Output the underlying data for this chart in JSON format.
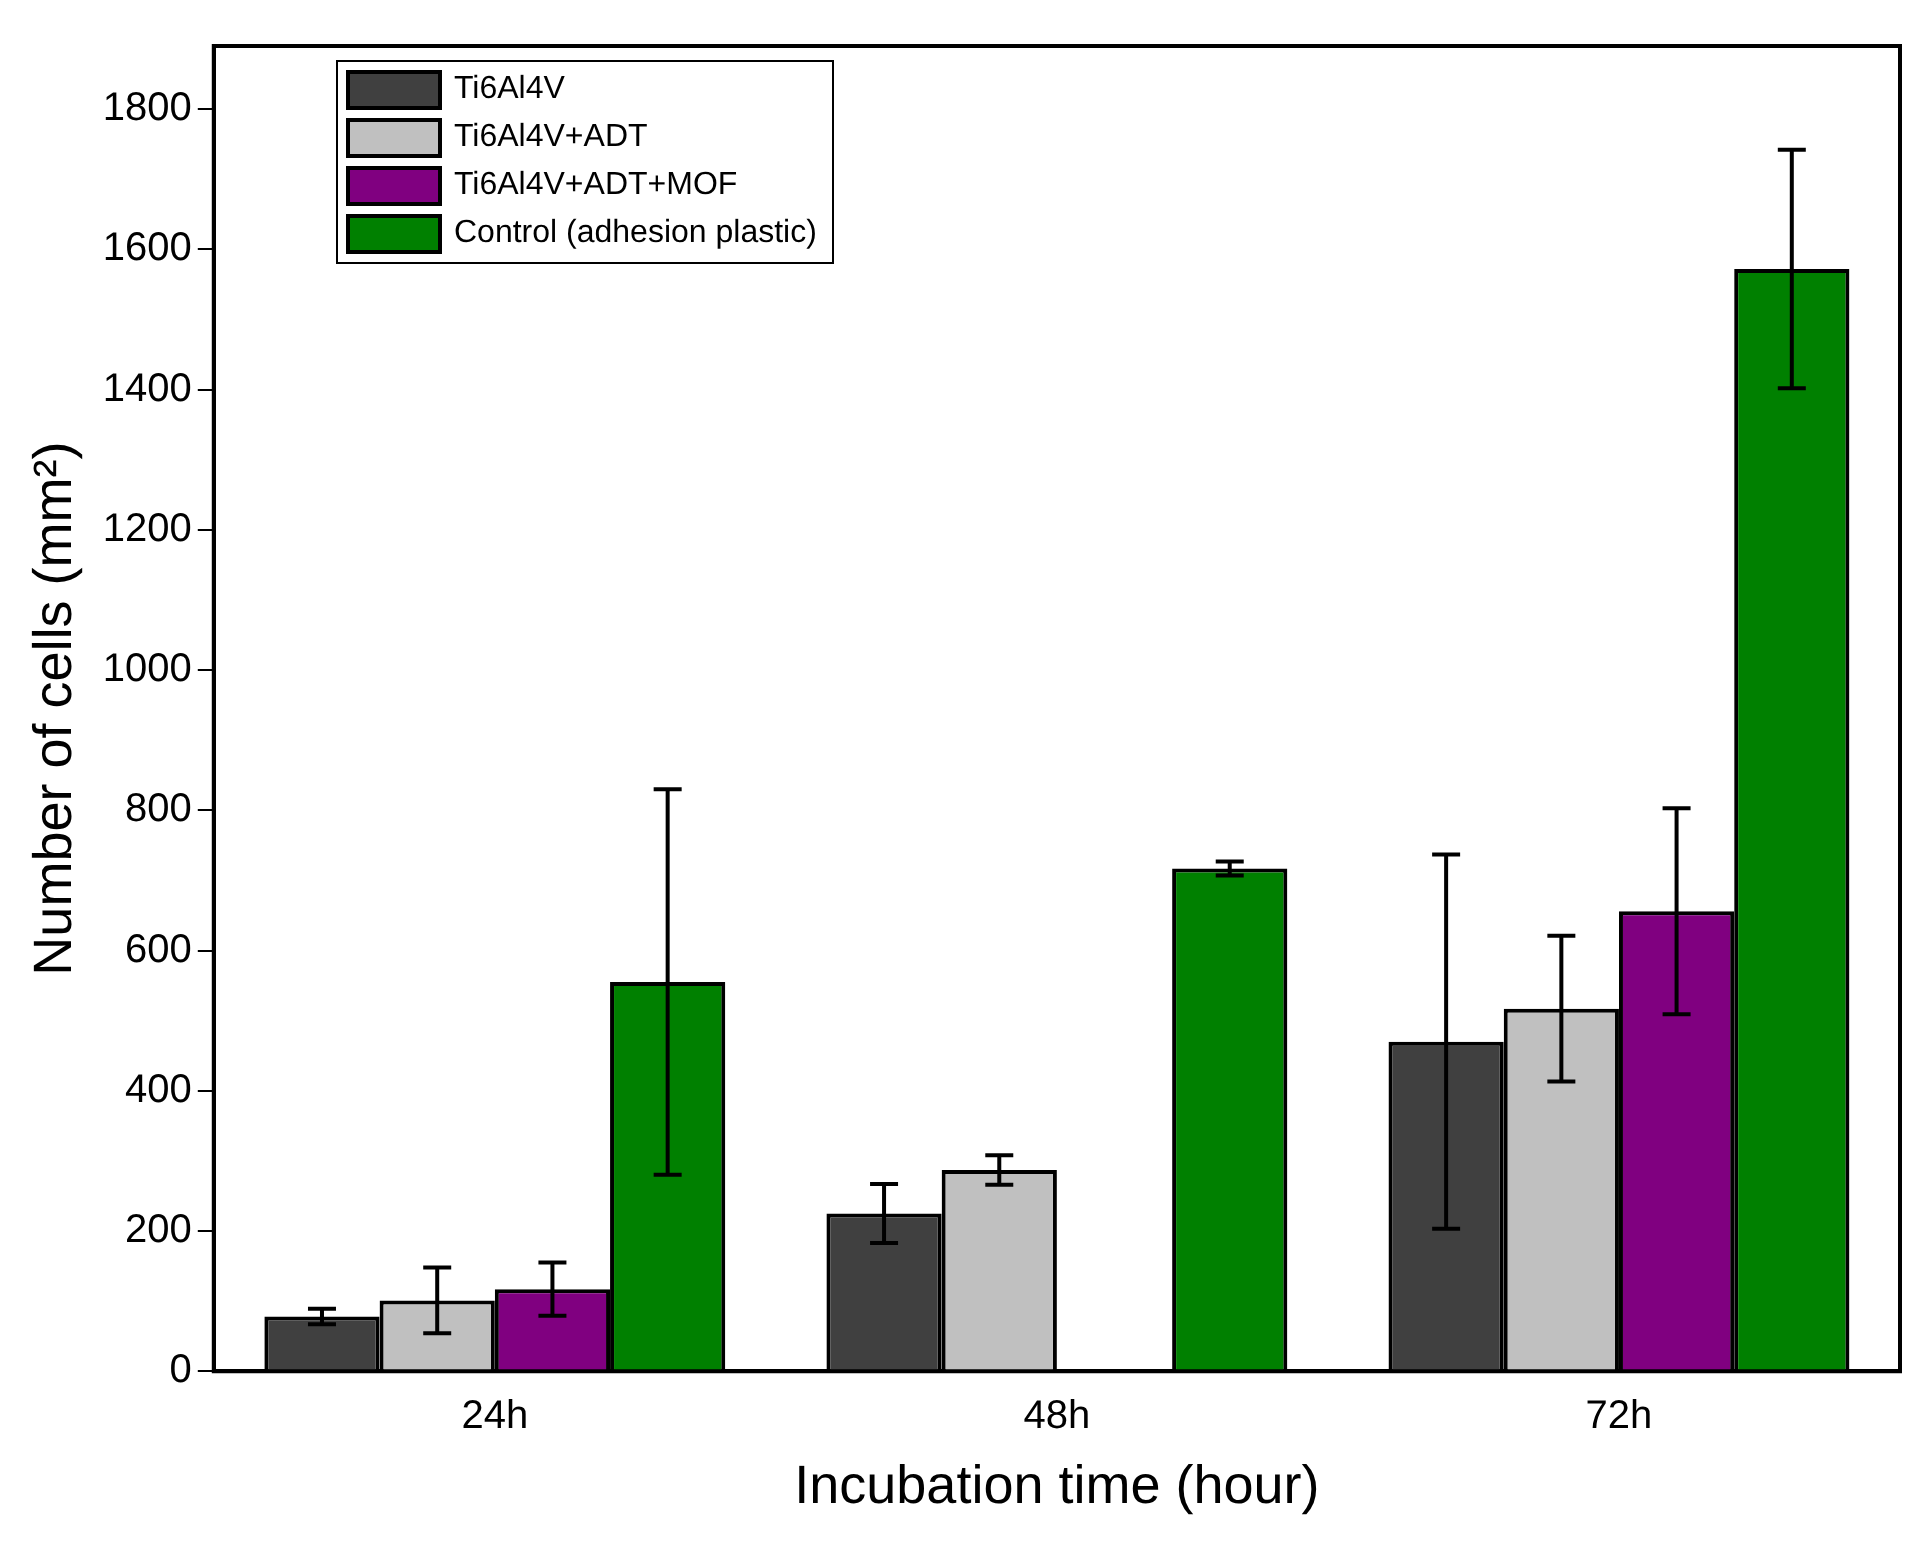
{
  "chart_data": {
    "type": "bar",
    "xlabel": "Incubation time (hour)",
    "ylabel": "Number of cells (mm²)",
    "categories": [
      "24h",
      "48h",
      "72h"
    ],
    "series": [
      {
        "name": "Ti6Al4V",
        "color": "#404040",
        "values": [
          78,
          225,
          470
        ],
        "errors": [
          11,
          42,
          267
        ]
      },
      {
        "name": "Ti6Al4V+ADT",
        "color": "#c0c0c0",
        "values": [
          101,
          287,
          517
        ],
        "errors": [
          47,
          21,
          104
        ]
      },
      {
        "name": "Ti6Al4V+ADT+MOF",
        "color": "#800080",
        "values": [
          117,
          null,
          656
        ],
        "errors": [
          38,
          null,
          147
        ]
      },
      {
        "name": "Control (adhesion plastic)",
        "color": "#008000",
        "values": [
          555,
          717,
          1572
        ],
        "errors": [
          275,
          10,
          170
        ]
      }
    ],
    "ylim": [
      0,
      1890
    ],
    "yticks": [
      0,
      200,
      400,
      600,
      800,
      1000,
      1200,
      1400,
      1600,
      1800
    ],
    "grid": false,
    "legend": "top left"
  }
}
